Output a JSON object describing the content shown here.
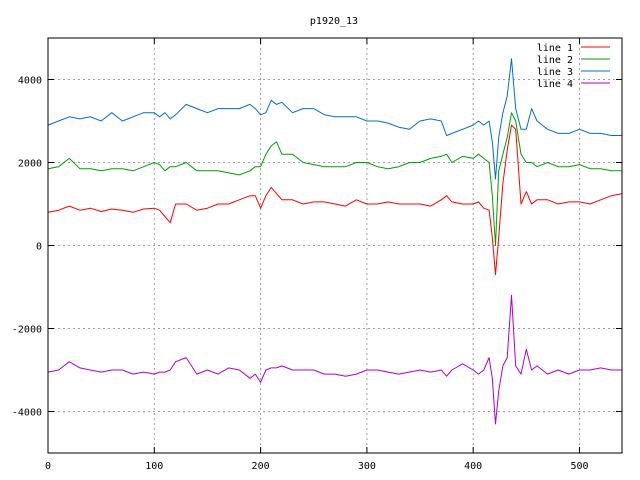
{
  "chart_data": {
    "type": "line",
    "title": "p1920_13",
    "xlabel": "",
    "ylabel": "",
    "xlim": [
      0,
      540
    ],
    "ylim": [
      -5000,
      5000
    ],
    "x_ticks": [
      0,
      100,
      200,
      300,
      400,
      500
    ],
    "y_ticks": [
      -4000,
      -2000,
      0,
      2000,
      4000
    ],
    "grid": true,
    "legend_position": "top-right",
    "series": [
      {
        "name": "line 1",
        "color": "#ff0000",
        "x": [
          0,
          10,
          20,
          30,
          40,
          50,
          60,
          70,
          80,
          90,
          100,
          105,
          110,
          115,
          120,
          130,
          140,
          150,
          160,
          170,
          180,
          190,
          195,
          200,
          205,
          210,
          220,
          230,
          240,
          250,
          260,
          270,
          280,
          290,
          300,
          310,
          320,
          330,
          340,
          350,
          360,
          370,
          375,
          380,
          390,
          400,
          405,
          410,
          415,
          418,
          421,
          424,
          428,
          432,
          436,
          440,
          445,
          450,
          455,
          460,
          470,
          480,
          490,
          500,
          510,
          520,
          530,
          540
        ],
        "y": [
          800,
          850,
          950,
          850,
          900,
          820,
          880,
          850,
          800,
          880,
          900,
          850,
          700,
          550,
          1000,
          1000,
          850,
          900,
          1000,
          1000,
          1100,
          1200,
          1200,
          900,
          1200,
          1400,
          1100,
          1100,
          1000,
          1050,
          1050,
          1000,
          950,
          1100,
          1000,
          1000,
          1050,
          1000,
          1000,
          1000,
          950,
          1100,
          1200,
          1050,
          1000,
          1000,
          1050,
          900,
          850,
          200,
          -700,
          200,
          1500,
          2300,
          2900,
          2800,
          1000,
          1300,
          1000,
          1100,
          1100,
          1000,
          1050,
          1050,
          1000,
          1100,
          1200,
          1250
        ]
      },
      {
        "name": "line 2",
        "color": "#00a000",
        "x": [
          0,
          10,
          20,
          30,
          40,
          50,
          60,
          70,
          80,
          90,
          100,
          105,
          110,
          115,
          120,
          130,
          140,
          150,
          160,
          170,
          180,
          190,
          195,
          200,
          205,
          210,
          215,
          220,
          230,
          240,
          250,
          260,
          270,
          280,
          290,
          300,
          310,
          320,
          330,
          340,
          350,
          360,
          370,
          375,
          380,
          390,
          400,
          405,
          410,
          415,
          418,
          421,
          424,
          428,
          432,
          436,
          440,
          445,
          450,
          455,
          460,
          470,
          480,
          490,
          500,
          510,
          520,
          530,
          540
        ],
        "y": [
          1850,
          1900,
          2100,
          1850,
          1850,
          1800,
          1850,
          1850,
          1800,
          1900,
          2000,
          1950,
          1800,
          1900,
          1900,
          2000,
          1800,
          1800,
          1800,
          1750,
          1700,
          1800,
          1900,
          1900,
          2200,
          2400,
          2500,
          2200,
          2200,
          2000,
          1950,
          1900,
          1900,
          1900,
          2000,
          2000,
          1900,
          1850,
          1900,
          2000,
          2000,
          2100,
          2150,
          2200,
          2000,
          2150,
          2100,
          2200,
          2100,
          2000,
          1200,
          0,
          1800,
          2200,
          2600,
          3200,
          3000,
          2200,
          2000,
          2000,
          1900,
          2000,
          1900,
          1900,
          1950,
          1850,
          1850,
          1800,
          1800
        ]
      },
      {
        "name": "line 3",
        "color": "#0070d0",
        "x": [
          0,
          10,
          20,
          30,
          40,
          50,
          60,
          70,
          80,
          90,
          100,
          105,
          110,
          115,
          120,
          130,
          140,
          150,
          160,
          170,
          180,
          190,
          195,
          200,
          205,
          210,
          215,
          220,
          230,
          240,
          250,
          260,
          270,
          280,
          290,
          300,
          310,
          320,
          330,
          340,
          350,
          360,
          370,
          375,
          380,
          390,
          400,
          405,
          410,
          415,
          418,
          421,
          424,
          428,
          432,
          436,
          440,
          445,
          450,
          455,
          460,
          470,
          480,
          490,
          500,
          510,
          520,
          530,
          540
        ],
        "y": [
          2900,
          3000,
          3100,
          3050,
          3100,
          3000,
          3200,
          3000,
          3100,
          3200,
          3200,
          3100,
          3200,
          3050,
          3150,
          3400,
          3300,
          3200,
          3300,
          3300,
          3300,
          3400,
          3300,
          3150,
          3200,
          3500,
          3400,
          3450,
          3200,
          3300,
          3300,
          3150,
          3100,
          3100,
          3100,
          3000,
          3000,
          2950,
          2850,
          2800,
          3000,
          3050,
          3000,
          2650,
          2700,
          2800,
          2900,
          3000,
          2900,
          3000,
          2500,
          1600,
          2600,
          3200,
          3600,
          4500,
          3300,
          2800,
          2800,
          3300,
          3000,
          2800,
          2700,
          2700,
          2800,
          2700,
          2700,
          2650,
          2650
        ]
      },
      {
        "name": "line 4",
        "color": "#b000d0",
        "x": [
          0,
          10,
          20,
          30,
          40,
          50,
          60,
          70,
          80,
          90,
          100,
          105,
          110,
          115,
          120,
          130,
          140,
          150,
          160,
          170,
          180,
          190,
          195,
          200,
          205,
          210,
          215,
          220,
          230,
          240,
          250,
          260,
          270,
          280,
          290,
          300,
          310,
          320,
          330,
          340,
          350,
          360,
          370,
          375,
          380,
          390,
          400,
          405,
          410,
          415,
          418,
          421,
          424,
          428,
          432,
          436,
          440,
          445,
          450,
          455,
          460,
          470,
          480,
          490,
          500,
          510,
          520,
          530,
          540
        ],
        "y": [
          -3050,
          -3000,
          -2800,
          -2950,
          -3000,
          -3050,
          -3000,
          -3000,
          -3100,
          -3050,
          -3100,
          -3050,
          -3050,
          -3000,
          -2800,
          -2700,
          -3100,
          -3000,
          -3100,
          -2950,
          -3000,
          -3200,
          -3100,
          -3300,
          -3000,
          -2950,
          -2950,
          -2900,
          -3000,
          -3000,
          -3000,
          -3100,
          -3100,
          -3150,
          -3100,
          -3000,
          -3000,
          -3050,
          -3100,
          -3050,
          -3000,
          -3050,
          -3000,
          -3150,
          -3000,
          -2850,
          -3000,
          -3100,
          -3000,
          -2700,
          -3200,
          -4300,
          -3500,
          -2900,
          -2700,
          -1200,
          -2900,
          -3100,
          -2500,
          -3000,
          -2900,
          -3100,
          -3000,
          -3100,
          -3000,
          -3000,
          -2950,
          -3000,
          -3000
        ]
      }
    ]
  }
}
